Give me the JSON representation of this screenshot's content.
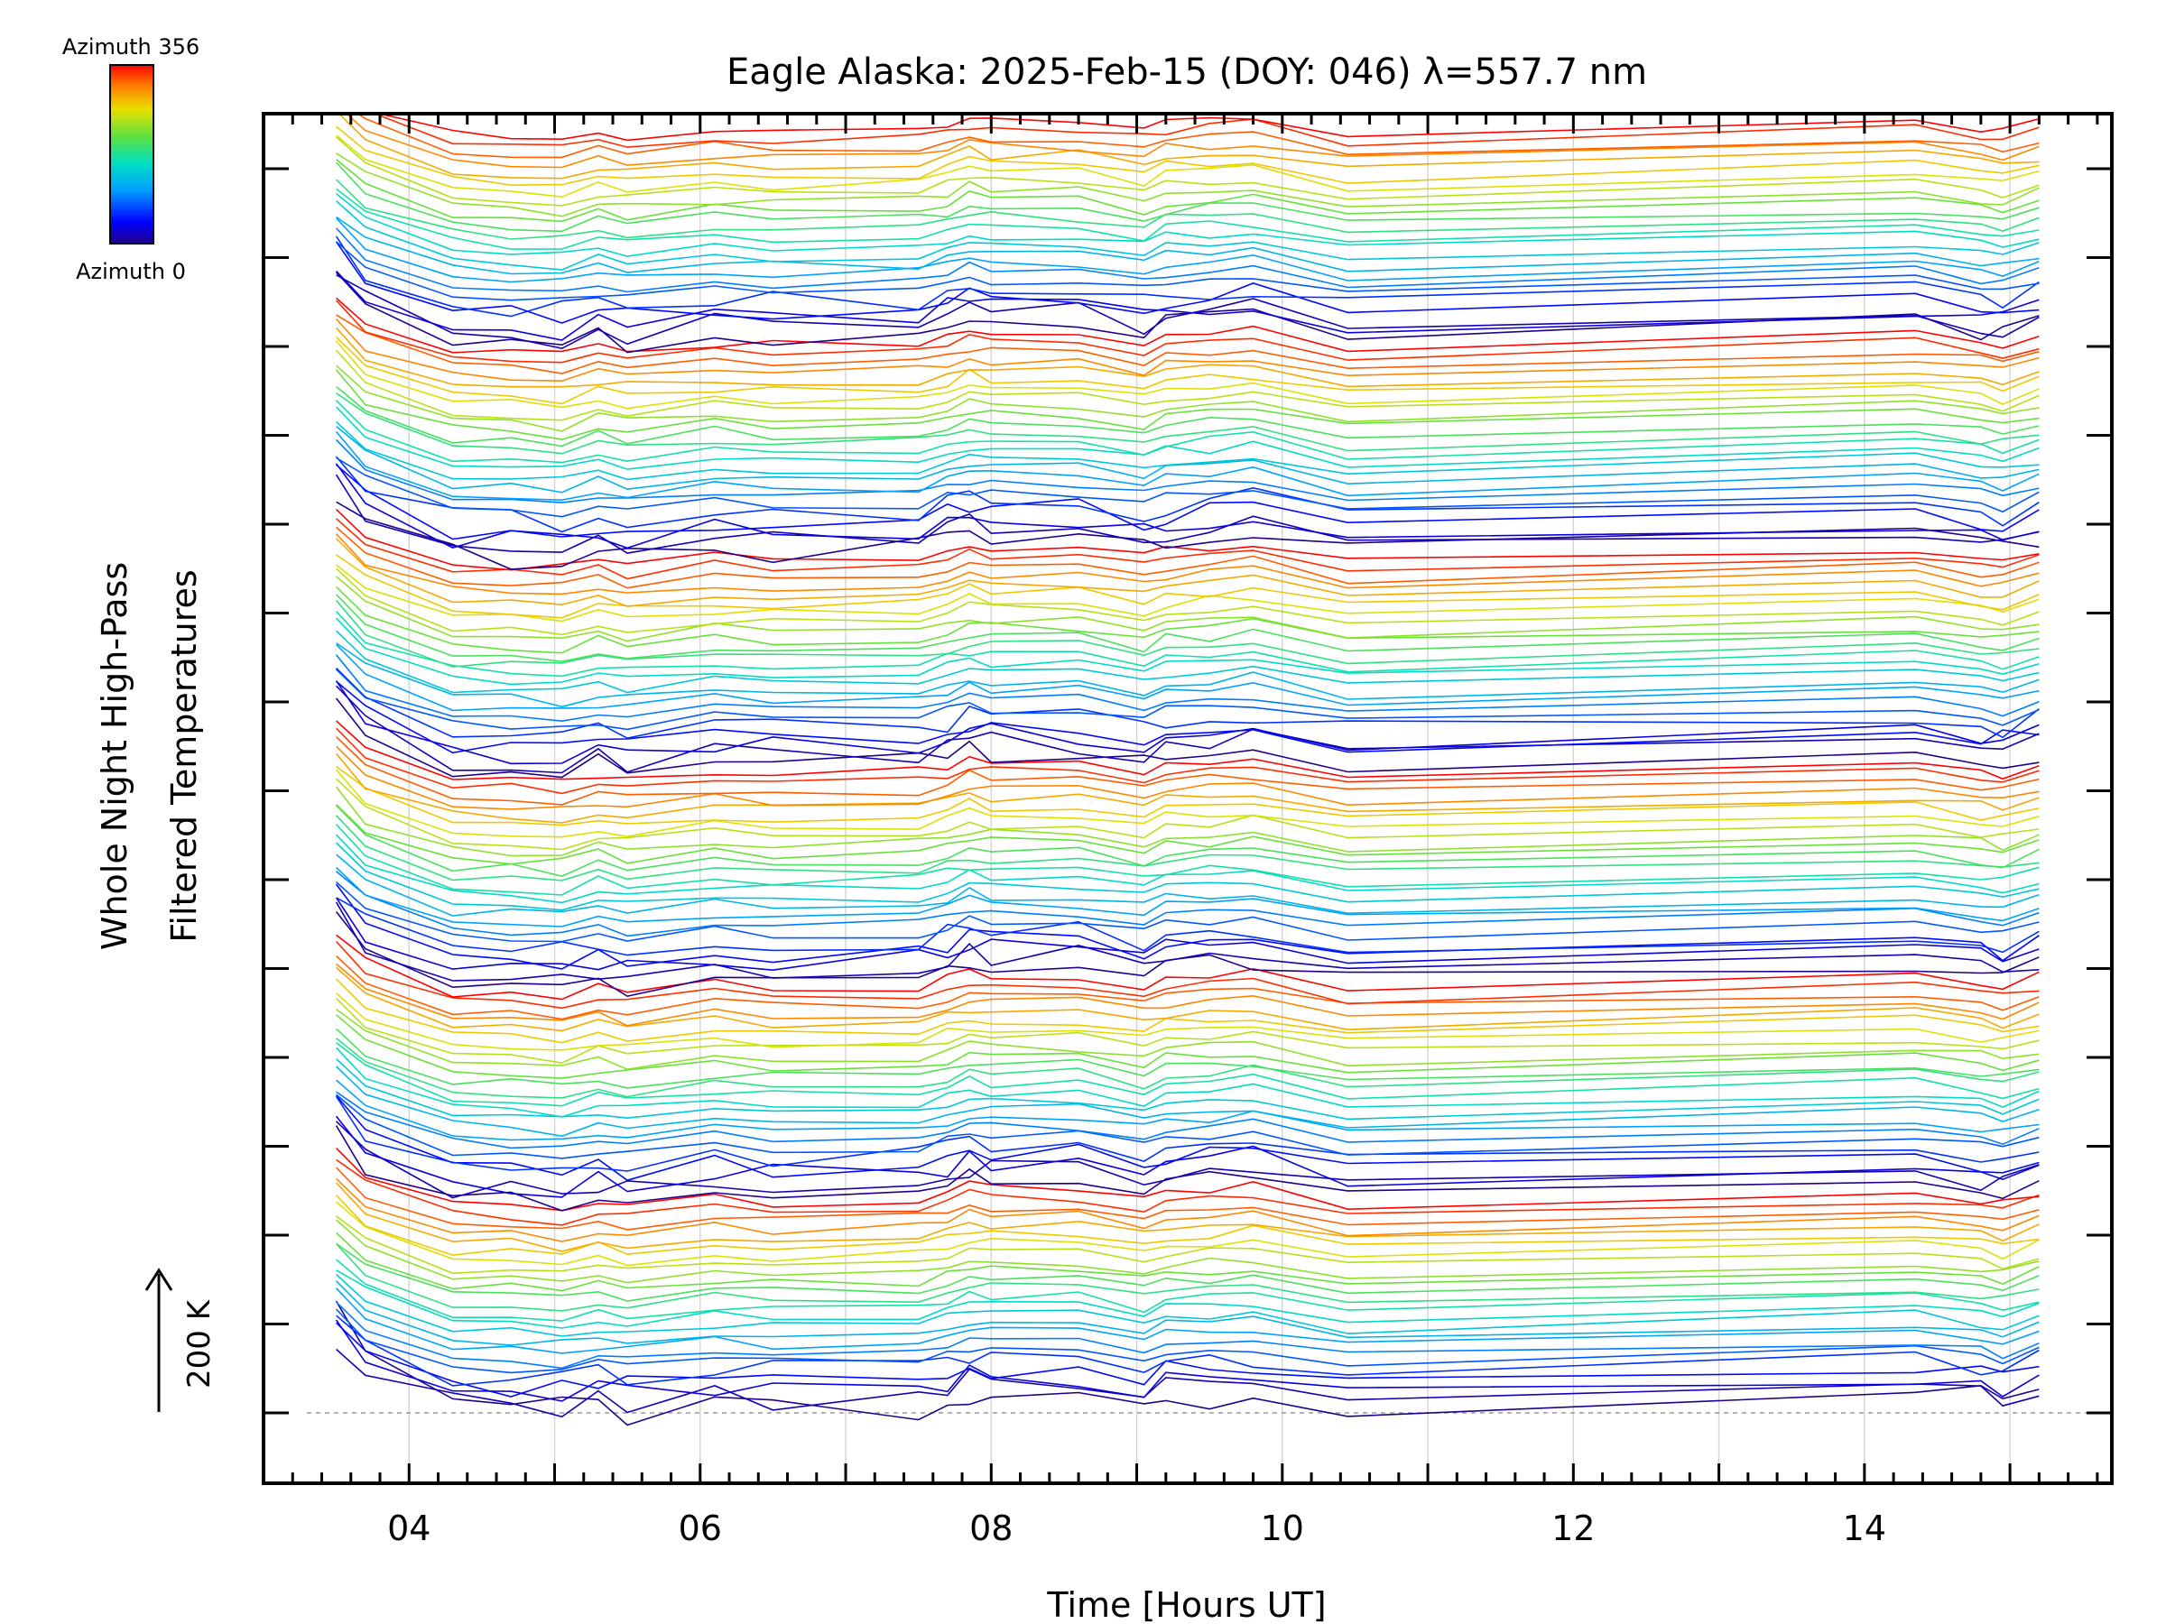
{
  "chart_data": {
    "type": "line",
    "title": "Eagle Alaska: 2025-Feb-15 (DOY: 046) λ=557.7 nm",
    "xlabel": "Time [Hours UT]",
    "ylabel_line1": "Whole Night High-Pass",
    "ylabel_line2": "Filtered Temperatures",
    "xlim": [
      3.0,
      15.7
    ],
    "x_ticks": [
      "04",
      "06",
      "08",
      "10",
      "12",
      "14"
    ],
    "x_tick_values": [
      4,
      6,
      8,
      10,
      12,
      14
    ],
    "y_axis_labels": "none",
    "scale_bar_label": "200 K",
    "colorbar": {
      "top_label": "Azimuth 356",
      "bottom_label": "Azimuth 0",
      "colormap": "rainbow (blue to red)",
      "azimuth_range": [
        0,
        356
      ]
    },
    "grid": "vertical gridlines at each hour",
    "x": [
      3.5,
      3.7,
      4.3,
      4.7,
      5.05,
      5.3,
      5.5,
      6.1,
      6.5,
      7.5,
      7.7,
      7.85,
      8.0,
      8.6,
      9.05,
      9.2,
      9.5,
      9.8,
      10.45,
      14.35,
      14.8,
      14.95,
      15.2
    ],
    "series_count": 144,
    "series_structure": "stacked traces ordered by azimuth, each offset vertically; azimuth cycles from 0 to 356 repeatedly up the stack",
    "colors": {
      "background": "#ffffff",
      "axes": "#000000",
      "grid": "#d0d0d0",
      "baseline": "#999999"
    }
  }
}
